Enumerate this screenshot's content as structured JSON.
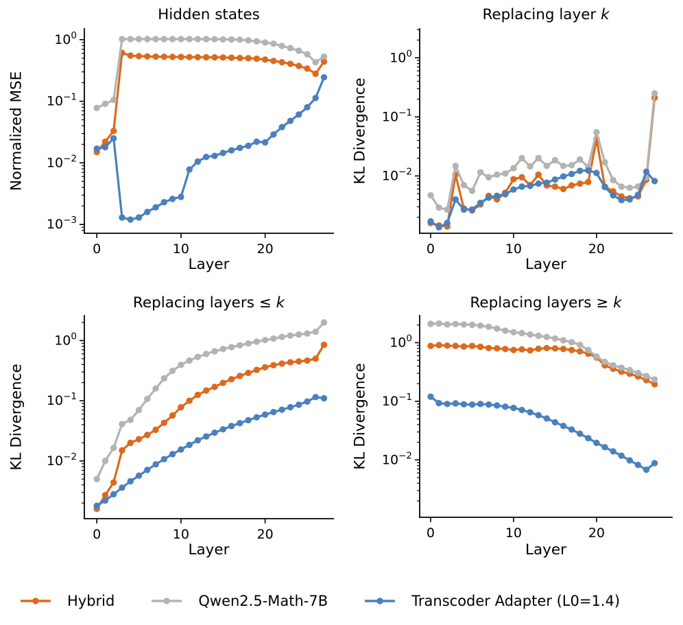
{
  "colors": {
    "hybrid": "#DC6A1E",
    "qwen": "#B3B3B3",
    "transcoder": "#4A80BD",
    "axis": "#000000",
    "background": "#ffffff"
  },
  "legend": {
    "items": [
      {
        "id": "hybrid",
        "label": "Hybrid"
      },
      {
        "id": "qwen",
        "label": "Qwen2.5-Math-7B"
      },
      {
        "id": "transcoder",
        "label": "Transcoder Adapter (L0=1.4)"
      }
    ]
  },
  "layers": [
    0,
    1,
    2,
    3,
    4,
    5,
    6,
    7,
    8,
    9,
    10,
    11,
    12,
    13,
    14,
    15,
    16,
    17,
    18,
    19,
    20,
    21,
    22,
    23,
    24,
    25,
    26,
    27
  ],
  "chart_data": [
    {
      "id": "hidden-states",
      "type": "line",
      "title_prefix": "Hidden states",
      "title_math": "",
      "xlabel": "Layer",
      "ylabel": "Normalized MSE",
      "yscale": "log",
      "xlim": [
        -1.48,
        28.1
      ],
      "ylim": [
        0.00072,
        1.5
      ],
      "xticks": [
        0,
        10,
        20
      ],
      "ytick_exponents": [
        0,
        -1,
        -2,
        -3
      ],
      "grid": false,
      "series": [
        {
          "name": "Hybrid",
          "color_id": "hybrid",
          "values": [
            0.015,
            0.022,
            0.033,
            0.61,
            0.55,
            0.54,
            0.535,
            0.53,
            0.528,
            0.526,
            0.524,
            0.522,
            0.52,
            0.518,
            0.516,
            0.513,
            0.51,
            0.505,
            0.5,
            0.49,
            0.475,
            0.452,
            0.43,
            0.405,
            0.375,
            0.34,
            0.28,
            0.44
          ]
        },
        {
          "name": "Qwen2.5-Math-7B",
          "color_id": "qwen",
          "values": [
            0.078,
            0.091,
            0.105,
            1.02,
            1.02,
            1.02,
            1.02,
            1.02,
            1.02,
            1.02,
            1.02,
            1.02,
            1.02,
            1.02,
            1.015,
            1.01,
            1.005,
            1.0,
            0.975,
            0.94,
            0.9,
            0.86,
            0.79,
            0.73,
            0.66,
            0.58,
            0.43,
            0.53
          ]
        },
        {
          "name": "Transcoder Adapter (L0=1.4)",
          "color_id": "transcoder",
          "values": [
            0.017,
            0.018,
            0.025,
            0.0013,
            0.0012,
            0.0013,
            0.0016,
            0.0019,
            0.0023,
            0.0026,
            0.0028,
            0.0078,
            0.0105,
            0.0125,
            0.013,
            0.0145,
            0.016,
            0.0175,
            0.019,
            0.022,
            0.0215,
            0.029,
            0.038,
            0.048,
            0.061,
            0.08,
            0.113,
            0.245
          ]
        }
      ]
    },
    {
      "id": "replacing-layer-k",
      "type": "line",
      "title_prefix": "Replacing layer ",
      "title_math": "k",
      "xlabel": "Layer",
      "ylabel": "KL Divergence",
      "yscale": "log",
      "xlim": [
        -1.32,
        29.1
      ],
      "ylim": [
        0.00107,
        3.1
      ],
      "xticks": [
        0,
        10,
        20
      ],
      "ytick_exponents": [
        0,
        -1,
        -2
      ],
      "grid": false,
      "series": [
        {
          "name": "Hybrid",
          "color_id": "hybrid",
          "values": [
            0.0016,
            0.00145,
            0.0014,
            0.0105,
            0.0028,
            0.0026,
            0.0033,
            0.0046,
            0.004,
            0.0052,
            0.0088,
            0.0095,
            0.007,
            0.0105,
            0.0069,
            0.0066,
            0.006,
            0.0069,
            0.0074,
            0.0079,
            0.042,
            0.0066,
            0.0055,
            0.0045,
            0.0042,
            0.0045,
            0.0086,
            0.21
          ]
        },
        {
          "name": "Qwen2.5-Math-7B",
          "color_id": "qwen",
          "values": [
            0.0047,
            0.0029,
            0.0027,
            0.0148,
            0.007,
            0.0056,
            0.0115,
            0.0095,
            0.0105,
            0.011,
            0.0135,
            0.02,
            0.0145,
            0.02,
            0.0148,
            0.0185,
            0.0148,
            0.0152,
            0.019,
            0.0142,
            0.055,
            0.017,
            0.0085,
            0.0066,
            0.0063,
            0.0066,
            0.0095,
            0.25
          ]
        },
        {
          "name": "Transcoder Adapter (L0=1.4)",
          "color_id": "transcoder",
          "values": [
            0.0017,
            0.00135,
            0.0016,
            0.004,
            0.0027,
            0.0027,
            0.0035,
            0.0043,
            0.0046,
            0.0049,
            0.0059,
            0.0066,
            0.0068,
            0.0074,
            0.0077,
            0.0087,
            0.0098,
            0.0108,
            0.0122,
            0.0124,
            0.0112,
            0.0065,
            0.0047,
            0.0039,
            0.004,
            0.0048,
            0.0118,
            0.0082
          ]
        }
      ]
    },
    {
      "id": "replacing-layers-lek",
      "type": "line",
      "title_prefix": "Replacing layers ≤ ",
      "title_math": "k",
      "xlabel": "Layer",
      "ylabel": "KL Divergence",
      "yscale": "log",
      "xlim": [
        -1.48,
        28.1
      ],
      "ylim": [
        0.0011,
        2.6
      ],
      "xticks": [
        0,
        10,
        20
      ],
      "ytick_exponents": [
        0,
        -1,
        -2
      ],
      "grid": false,
      "series": [
        {
          "name": "Hybrid",
          "color_id": "hybrid",
          "values": [
            0.0016,
            0.0027,
            0.0044,
            0.015,
            0.02,
            0.023,
            0.027,
            0.033,
            0.043,
            0.057,
            0.078,
            0.1,
            0.125,
            0.148,
            0.17,
            0.198,
            0.228,
            0.258,
            0.29,
            0.325,
            0.36,
            0.39,
            0.415,
            0.435,
            0.45,
            0.465,
            0.5,
            0.85
          ]
        },
        {
          "name": "Qwen2.5-Math-7B",
          "color_id": "qwen",
          "values": [
            0.005,
            0.01,
            0.0165,
            0.041,
            0.048,
            0.07,
            0.107,
            0.16,
            0.235,
            0.315,
            0.395,
            0.465,
            0.535,
            0.6,
            0.665,
            0.725,
            0.78,
            0.835,
            0.895,
            0.96,
            1.02,
            1.08,
            1.15,
            1.21,
            1.26,
            1.31,
            1.4,
            2.0
          ]
        },
        {
          "name": "Transcoder Adapter (L0=1.4)",
          "color_id": "transcoder",
          "values": [
            0.0018,
            0.0022,
            0.0028,
            0.0036,
            0.0046,
            0.0057,
            0.0071,
            0.0088,
            0.0107,
            0.013,
            0.0155,
            0.0185,
            0.022,
            0.0255,
            0.0295,
            0.0335,
            0.038,
            0.0425,
            0.0475,
            0.053,
            0.059,
            0.065,
            0.071,
            0.078,
            0.086,
            0.097,
            0.115,
            0.11
          ]
        }
      ]
    },
    {
      "id": "replacing-layers-gek",
      "type": "line",
      "title_prefix": "Replacing layers ≥ ",
      "title_math": "k",
      "xlabel": "Layer",
      "ylabel": "KL Divergence",
      "yscale": "log",
      "xlim": [
        -1.32,
        29.1
      ],
      "ylim": [
        0.00105,
        2.9
      ],
      "xticks": [
        0,
        10,
        20
      ],
      "ytick_exponents": [
        0,
        -1,
        -2
      ],
      "grid": false,
      "series": [
        {
          "name": "Hybrid",
          "color_id": "hybrid",
          "values": [
            0.88,
            0.91,
            0.89,
            0.88,
            0.86,
            0.88,
            0.85,
            0.81,
            0.8,
            0.78,
            0.75,
            0.77,
            0.74,
            0.79,
            0.81,
            0.8,
            0.78,
            0.75,
            0.71,
            0.65,
            0.56,
            0.41,
            0.36,
            0.32,
            0.295,
            0.265,
            0.23,
            0.195
          ]
        },
        {
          "name": "Qwen2.5-Math-7B",
          "color_id": "qwen",
          "values": [
            2.1,
            2.12,
            2.05,
            2.08,
            2.05,
            2.02,
            1.95,
            1.87,
            1.74,
            1.6,
            1.51,
            1.46,
            1.38,
            1.31,
            1.25,
            1.18,
            1.1,
            1.02,
            0.92,
            0.75,
            0.58,
            0.47,
            0.41,
            0.375,
            0.34,
            0.305,
            0.27,
            0.235
          ]
        },
        {
          "name": "Transcoder Adapter (L0=1.4)",
          "color_id": "transcoder",
          "values": [
            0.12,
            0.093,
            0.09,
            0.092,
            0.089,
            0.088,
            0.09,
            0.088,
            0.085,
            0.081,
            0.077,
            0.071,
            0.065,
            0.058,
            0.051,
            0.044,
            0.038,
            0.033,
            0.028,
            0.0235,
            0.0195,
            0.0165,
            0.014,
            0.0118,
            0.0098,
            0.0082,
            0.0068,
            0.0088
          ]
        }
      ]
    }
  ]
}
